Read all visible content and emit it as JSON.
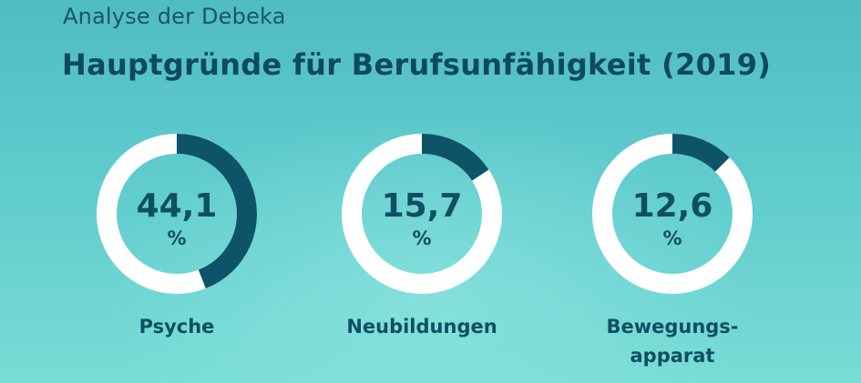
{
  "chart_data": {
    "type": "donut",
    "subtitle": "Analyse der Debeka",
    "title": "Hauptgründe für Berufsunfähigkeit (2019)",
    "unit": "%",
    "items": [
      {
        "value_label": "44,1",
        "value": 44.1,
        "label": "Psyche"
      },
      {
        "value_label": "15,7",
        "value": 15.7,
        "label": "Neubildungen"
      },
      {
        "value_label": "12,6",
        "value": 12.6,
        "label": "Bewegungs-\napparat"
      }
    ],
    "colors": {
      "segment": "#0d5468",
      "ring": "#ffffff"
    }
  }
}
